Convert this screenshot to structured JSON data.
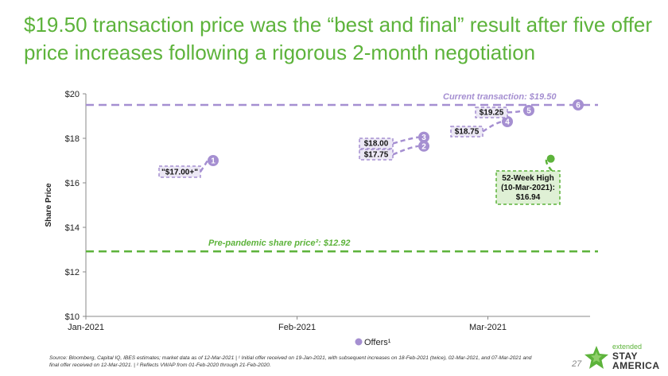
{
  "title": {
    "line1": "$19.50 transaction price was the “best and final” result after five offer",
    "line2": "price increases following a rigorous 2-month negotiation"
  },
  "chart_data": {
    "type": "scatter",
    "ylabel": "Share Price",
    "ylim": [
      10,
      20
    ],
    "y_ticks": [
      "$10",
      "$12",
      "$14",
      "$16",
      "$18",
      "$20"
    ],
    "x_ticks": [
      "Jan-2021",
      "Feb-2021",
      "Mar-2021"
    ],
    "grid": false,
    "legend_position": "bottom",
    "series": [
      {
        "name": "Offers¹",
        "color": "#a58fd1",
        "points": [
          {
            "n": "1",
            "date": "2021-01-19",
            "value": 17.0,
            "label": "\"$17.00+\""
          },
          {
            "n": "2",
            "date": "2021-02-18",
            "value": 17.75,
            "label": "$17.75"
          },
          {
            "n": "3",
            "date": "2021-02-18",
            "value": 18.0,
            "label": "$18.00"
          },
          {
            "n": "4",
            "date": "2021-03-02",
            "value": 18.75,
            "label": "$18.75"
          },
          {
            "n": "5",
            "date": "2021-03-07",
            "value": 19.25,
            "label": "$19.25"
          },
          {
            "n": "6",
            "date": "2021-03-12",
            "value": 19.5,
            "label": ""
          }
        ]
      }
    ],
    "reference_lines": [
      {
        "value": 19.5,
        "label": "Current transaction: $19.50",
        "color": "#a58fd1"
      },
      {
        "value": 12.92,
        "label": "Pre-pandemic share price²: $12.92",
        "color": "#5db33b"
      }
    ],
    "high_point": {
      "date": "2021-03-10",
      "value": 16.94,
      "color": "#5db33b",
      "label_lines": [
        "52-Week High",
        "(10-Mar-2021):",
        "$16.94"
      ]
    }
  },
  "footnote": {
    "line1": "Source: Bloomberg, Capital IQ, IBES estimates; market data as of 12-Mar-2021 | ¹ Initial offer received on 19-Jan-2021, with subsequent increases on 18-Feb-2021 (twice), 02-Mar-2021, and 07-Mar-2021 and",
    "line2": "final offer received on 12-Mar-2021. | ² Reflects VWAP from 01-Feb-2020 through 21-Feb-2020."
  },
  "page_number": "27",
  "logo": {
    "line1": "extended",
    "line2": "STAY",
    "line3": "AMERICA"
  }
}
